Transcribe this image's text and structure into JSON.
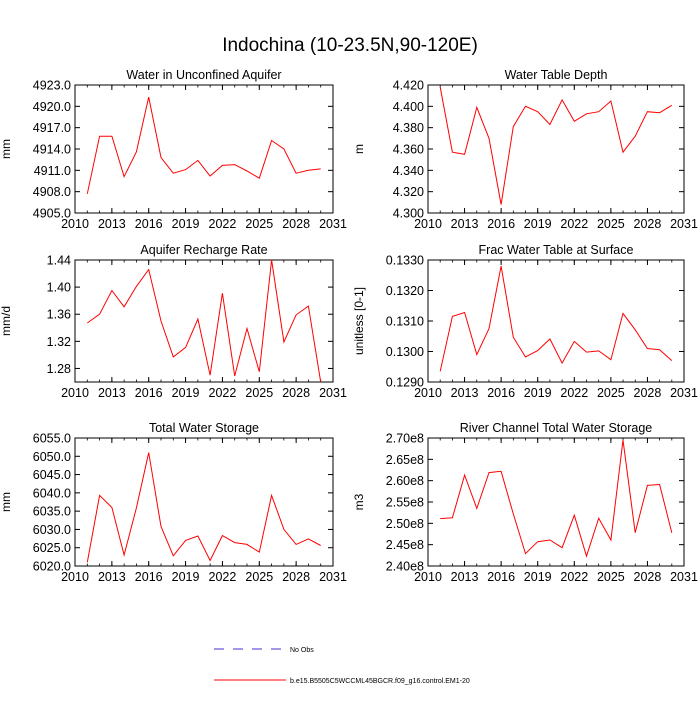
{
  "page_title": "Indochina (10-23.5N,90-120E)",
  "colors": {
    "model_line": "#ff0000",
    "obs_line": "#4b2bd0",
    "axis": "#000000"
  },
  "legend": [
    {
      "label": "No Obs",
      "style": "dashed",
      "color": "#4b2bd0"
    },
    {
      "label": "b.e15.B5505C5WCCML45BGCR.f09_g16.control.EM1-20",
      "style": "solid",
      "color": "#ff0000"
    }
  ],
  "chart_data": [
    {
      "type": "line",
      "title": "Water in Unconfined Aquifer",
      "ylabel": "mm",
      "xlabel": "",
      "xlim": [
        2010,
        2031
      ],
      "xticks": [
        2010,
        2013,
        2016,
        2019,
        2022,
        2025,
        2028,
        2031
      ],
      "ylim": [
        4905.0,
        4923.0
      ],
      "yticks": [
        4905.0,
        4908.0,
        4911.0,
        4914.0,
        4917.0,
        4920.0,
        4923.0
      ],
      "ytick_labels": [
        "4905.0",
        "4908.0",
        "4911.0",
        "4914.0",
        "4917.0",
        "4920.0",
        "4923.0"
      ],
      "x": [
        2011,
        2012,
        2013,
        2014,
        2015,
        2016,
        2017,
        2018,
        2019,
        2020,
        2021,
        2022,
        2023,
        2024,
        2025,
        2026,
        2027,
        2028,
        2029,
        2030
      ],
      "series": [
        {
          "name": "b.e15.B5505C5WCCML45BGCR.f09_g16.control.EM1-20",
          "values": [
            4907.7,
            4915.8,
            4915.8,
            4910.1,
            4913.6,
            4921.3,
            4912.8,
            4910.6,
            4911.1,
            4912.4,
            4910.2,
            4911.7,
            4911.8,
            4910.9,
            4909.9,
            4915.2,
            4914.0,
            4910.6,
            4911.0,
            4911.2
          ]
        }
      ]
    },
    {
      "type": "line",
      "title": "Water Table Depth",
      "ylabel": "m",
      "xlabel": "",
      "xlim": [
        2010,
        2031
      ],
      "xticks": [
        2010,
        2013,
        2016,
        2019,
        2022,
        2025,
        2028,
        2031
      ],
      "ylim": [
        4.3,
        4.42
      ],
      "yticks": [
        4.3,
        4.32,
        4.34,
        4.36,
        4.38,
        4.4,
        4.42
      ],
      "ytick_labels": [
        "4.300",
        "4.320",
        "4.340",
        "4.360",
        "4.380",
        "4.400",
        "4.420"
      ],
      "x": [
        2011,
        2012,
        2013,
        2014,
        2015,
        2016,
        2017,
        2018,
        2019,
        2020,
        2021,
        2022,
        2023,
        2024,
        2025,
        2026,
        2027,
        2028,
        2029,
        2030
      ],
      "series": [
        {
          "name": "b.e15.B5505C5WCCML45BGCR.f09_g16.control.EM1-20",
          "values": [
            4.418,
            4.357,
            4.355,
            4.399,
            4.37,
            4.308,
            4.381,
            4.4,
            4.395,
            4.383,
            4.406,
            4.386,
            4.393,
            4.395,
            4.405,
            4.357,
            4.372,
            4.395,
            4.394,
            4.401
          ]
        }
      ]
    },
    {
      "type": "line",
      "title": "Aquifer Recharge Rate",
      "ylabel": "mm/d",
      "xlabel": "",
      "xlim": [
        2010,
        2031
      ],
      "xticks": [
        2010,
        2013,
        2016,
        2019,
        2022,
        2025,
        2028,
        2031
      ],
      "ylim": [
        1.26,
        1.44
      ],
      "yticks": [
        1.28,
        1.32,
        1.36,
        1.4,
        1.44
      ],
      "ytick_labels": [
        "1.28",
        "1.32",
        "1.36",
        "1.40",
        "1.44"
      ],
      "x": [
        2011,
        2012,
        2013,
        2014,
        2015,
        2016,
        2017,
        2018,
        2019,
        2020,
        2021,
        2022,
        2023,
        2024,
        2025,
        2026,
        2027,
        2028,
        2029,
        2030
      ],
      "series": [
        {
          "name": "b.e15.B5505C5WCCML45BGCR.f09_g16.control.EM1-20",
          "values": [
            1.347,
            1.36,
            1.395,
            1.371,
            1.401,
            1.426,
            1.35,
            1.297,
            1.311,
            1.353,
            1.27,
            1.391,
            1.269,
            1.339,
            1.275,
            1.44,
            1.319,
            1.359,
            1.372,
            1.26
          ]
        }
      ]
    },
    {
      "type": "line",
      "title": "Frac Water Table at Surface",
      "ylabel": "unitless [0-1]",
      "xlabel": "",
      "xlim": [
        2010,
        2031
      ],
      "xticks": [
        2010,
        2013,
        2016,
        2019,
        2022,
        2025,
        2028,
        2031
      ],
      "ylim": [
        0.129,
        0.133
      ],
      "yticks": [
        0.129,
        0.13,
        0.131,
        0.132,
        0.133
      ],
      "ytick_labels": [
        "0.1290",
        "0.1300",
        "0.1310",
        "0.1320",
        "0.1330"
      ],
      "x": [
        2011,
        2012,
        2013,
        2014,
        2015,
        2016,
        2017,
        2018,
        2019,
        2020,
        2021,
        2022,
        2023,
        2024,
        2025,
        2026,
        2027,
        2028,
        2029,
        2030
      ],
      "series": [
        {
          "name": "b.e15.B5505C5WCCML45BGCR.f09_g16.control.EM1-20",
          "values": [
            0.12935,
            0.13115,
            0.13128,
            0.1299,
            0.13075,
            0.1328,
            0.13047,
            0.12982,
            0.13003,
            0.13041,
            0.12962,
            0.13033,
            0.12998,
            0.13002,
            0.12973,
            0.13125,
            0.13071,
            0.1301,
            0.13006,
            0.1297
          ]
        }
      ]
    },
    {
      "type": "line",
      "title": "Total Water Storage",
      "ylabel": "mm",
      "xlabel": "",
      "xlim": [
        2010,
        2031
      ],
      "xticks": [
        2010,
        2013,
        2016,
        2019,
        2022,
        2025,
        2028,
        2031
      ],
      "ylim": [
        6020.0,
        6055.0
      ],
      "yticks": [
        6020.0,
        6025.0,
        6030.0,
        6035.0,
        6040.0,
        6045.0,
        6050.0,
        6055.0
      ],
      "ytick_labels": [
        "6020.0",
        "6025.0",
        "6030.0",
        "6035.0",
        "6040.0",
        "6045.0",
        "6050.0",
        "6055.0"
      ],
      "x": [
        2011,
        2012,
        2013,
        2014,
        2015,
        2016,
        2017,
        2018,
        2019,
        2020,
        2021,
        2022,
        2023,
        2024,
        2025,
        2026,
        2027,
        2028,
        2029,
        2030
      ],
      "series": [
        {
          "name": "b.e15.B5505C5WCCML45BGCR.f09_g16.control.EM1-20",
          "values": [
            6021.0,
            6039.3,
            6036.0,
            6023.0,
            6035.9,
            6051.0,
            6030.8,
            6022.8,
            6027.0,
            6028.2,
            6021.5,
            6028.3,
            6026.4,
            6025.9,
            6023.8,
            6039.3,
            6030.0,
            6025.9,
            6027.4,
            6025.6
          ]
        }
      ]
    },
    {
      "type": "line",
      "title": "River Channel Total Water Storage",
      "ylabel": "m3",
      "xlabel": "",
      "xlim": [
        2010,
        2031
      ],
      "xticks": [
        2010,
        2013,
        2016,
        2019,
        2022,
        2025,
        2028,
        2031
      ],
      "ylim": [
        240000000,
        270000000
      ],
      "yticks": [
        240000000,
        245000000,
        250000000,
        255000000,
        260000000,
        265000000,
        270000000
      ],
      "ytick_labels": [
        "2.40e8",
        "2.45e8",
        "2.50e8",
        "2.55e8",
        "2.60e8",
        "2.65e8",
        "2.70e8"
      ],
      "x": [
        2011,
        2012,
        2013,
        2014,
        2015,
        2016,
        2017,
        2018,
        2019,
        2020,
        2021,
        2022,
        2023,
        2024,
        2025,
        2026,
        2027,
        2028,
        2029,
        2030
      ],
      "series": [
        {
          "name": "b.e15.B5505C5WCCML45BGCR.f09_g16.control.EM1-20",
          "values": [
            251100000,
            251300000,
            261300000,
            253500000,
            261900000,
            262200000,
            252200000,
            242900000,
            245700000,
            246100000,
            244300000,
            251900000,
            242300000,
            251200000,
            246100000,
            269500000,
            247800000,
            258900000,
            259100000,
            247800000
          ]
        }
      ]
    }
  ]
}
